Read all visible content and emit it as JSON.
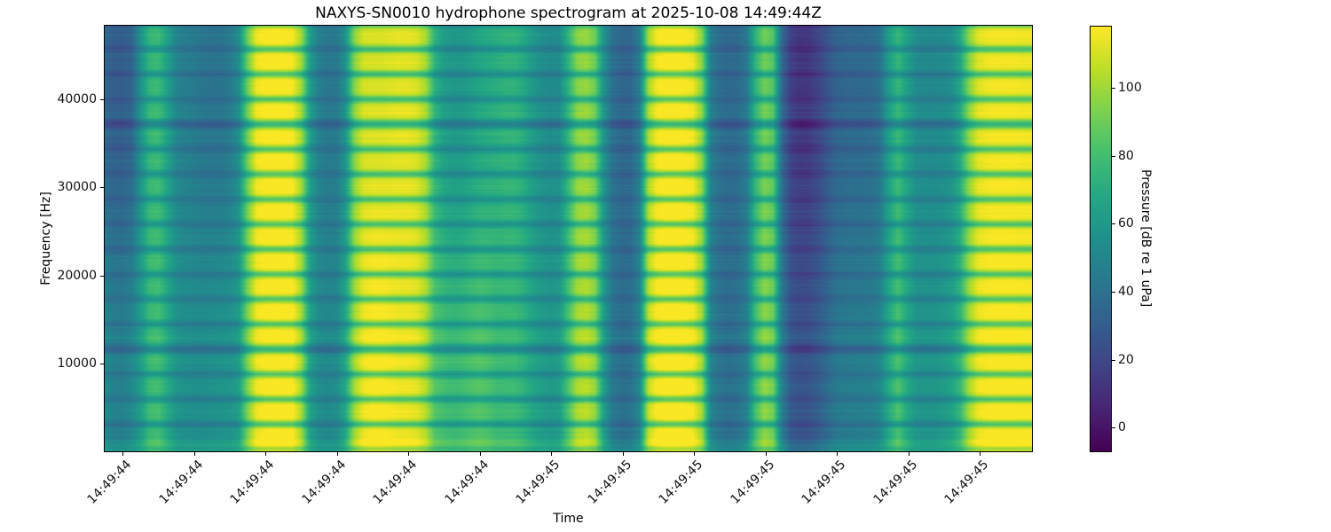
{
  "figure": {
    "background": "#ffffff"
  },
  "chart_data": {
    "type": "heatmap",
    "title": "NAXYS-SN0010 hydrophone spectrogram at 2025-10-08 14:49:44Z",
    "xlabel": "Time",
    "ylabel": "Frequency [Hz]",
    "x_tick_labels": [
      "14:49:44",
      "14:49:44",
      "14:49:44",
      "14:49:44",
      "14:49:44",
      "14:49:44",
      "14:49:45",
      "14:49:45",
      "14:49:45",
      "14:49:45",
      "14:49:45",
      "14:49:45",
      "14:49:45"
    ],
    "y_ticks_hz": [
      10000,
      20000,
      30000,
      40000
    ],
    "freq_range_hz": [
      0,
      48400
    ],
    "grid": false,
    "colorbar": {
      "label": "Pressure [dB re 1 uPa]",
      "ticks": [
        0,
        20,
        40,
        60,
        80,
        100
      ],
      "vmin": -7,
      "vmax": 118,
      "colormap": "viridis"
    },
    "time_profile_top_db": [
      34,
      30,
      30,
      33,
      55,
      72,
      74,
      62,
      48,
      45,
      43,
      41,
      40,
      40,
      43,
      52,
      85,
      108,
      112,
      112,
      112,
      110,
      95,
      60,
      45,
      42,
      42,
      55,
      90,
      103,
      104,
      104,
      105,
      106,
      106,
      104,
      95,
      70,
      60,
      57,
      57,
      60,
      64,
      66,
      68,
      70,
      70,
      66,
      58,
      53,
      51,
      52,
      70,
      90,
      93,
      85,
      55,
      38,
      34,
      34,
      45,
      95,
      110,
      113,
      113,
      112,
      108,
      90,
      45,
      37,
      35,
      36,
      42,
      70,
      86,
      80,
      35,
      16,
      12,
      13,
      18,
      25,
      32,
      34,
      35,
      35,
      36,
      40,
      60,
      72,
      62,
      52,
      50,
      50,
      51,
      53,
      65,
      90,
      105,
      108,
      109,
      109,
      109,
      108,
      108
    ],
    "time_profile_bottom_db": [
      50,
      46,
      46,
      50,
      60,
      74,
      76,
      66,
      56,
      54,
      53,
      53,
      54,
      55,
      56,
      60,
      88,
      108,
      112,
      113,
      112,
      112,
      96,
      62,
      52,
      50,
      52,
      65,
      95,
      108,
      112,
      112,
      110,
      108,
      108,
      106,
      98,
      80,
      76,
      74,
      75,
      78,
      80,
      78,
      74,
      74,
      74,
      70,
      64,
      60,
      58,
      60,
      78,
      96,
      99,
      92,
      60,
      42,
      38,
      39,
      50,
      100,
      112,
      115,
      115,
      114,
      110,
      95,
      48,
      40,
      38,
      40,
      46,
      76,
      92,
      86,
      45,
      28,
      25,
      26,
      30,
      36,
      42,
      44,
      45,
      45,
      46,
      50,
      66,
      78,
      66,
      57,
      56,
      56,
      58,
      62,
      72,
      95,
      108,
      111,
      112,
      112,
      112,
      111,
      111
    ],
    "harmonic_comb": {
      "period_hz": 2843,
      "phase_hz": 2620,
      "dip_sigma_hz": 430,
      "strong_dip_indices": [
        3,
        12
      ],
      "strong_dip_extra_db": 8,
      "strong_dip_sigma_hz": 560
    },
    "low_freq_boost": {
      "max_db": 20,
      "cutoff_hz": 1600
    },
    "texture_noise_db": 2.2,
    "colormap_stops": [
      [
        68,
        1,
        84
      ],
      [
        72,
        36,
        117
      ],
      [
        64,
        67,
        135
      ],
      [
        52,
        94,
        141
      ],
      [
        41,
        120,
        142
      ],
      [
        32,
        144,
        140
      ],
      [
        34,
        167,
        132
      ],
      [
        68,
        190,
        112
      ],
      [
        122,
        209,
        81
      ],
      [
        189,
        222,
        38
      ],
      [
        253,
        231,
        36
      ]
    ]
  }
}
